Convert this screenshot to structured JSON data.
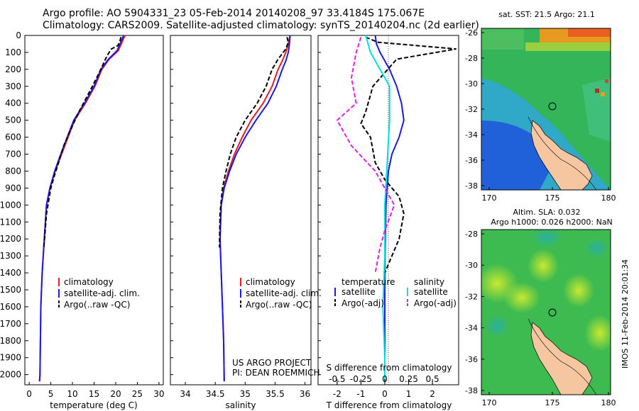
{
  "header": {
    "line1": "Argo profile: AO 5904331_23 05-Feb-2014 20140208_97 33.4184S 175.067E",
    "line2": "Climatology: CARS2009. Satellite-adjusted climatology: synTS_20140204.nc (2d earlier)"
  },
  "chart_data": [
    {
      "type": "line",
      "name": "temperature-profile",
      "xlabel": "temperature (deg C)",
      "ylabel": "",
      "xlim": [
        -1,
        31
      ],
      "ylim": [
        2060,
        0
      ],
      "xticks": [
        0,
        5,
        10,
        15,
        20,
        25,
        30
      ],
      "yticks": [
        0,
        100,
        200,
        300,
        400,
        500,
        600,
        700,
        800,
        900,
        1000,
        1100,
        1200,
        1300,
        1400,
        1500,
        1600,
        1700,
        1800,
        1900,
        2000
      ],
      "legend": [
        "climatology",
        "satellite-adj. clim.",
        "Argo(..raw -QC)"
      ],
      "series": [
        {
          "name": "climatology",
          "color": "#e02020",
          "style": "solid",
          "x": [
            22.2,
            21.8,
            21.3,
            20.6,
            18.5,
            16.8,
            15.2,
            13.0,
            10.5,
            9.0,
            7.5,
            6.0,
            4.8,
            4.0,
            3.5,
            3.0,
            2.7,
            2.6,
            2.5,
            2.4
          ],
          "y": [
            0,
            20,
            50,
            90,
            140,
            200,
            300,
            400,
            500,
            600,
            700,
            800,
            900,
            1000,
            1200,
            1400,
            1600,
            1800,
            2000,
            2040
          ]
        },
        {
          "name": "satellite-adj. clim.",
          "color": "#1a1ae0",
          "style": "solid",
          "x": [
            21.8,
            21.5,
            21.0,
            20.3,
            18.3,
            16.6,
            15.0,
            12.8,
            10.3,
            8.8,
            7.3,
            5.9,
            4.8,
            4.0,
            3.5,
            3.0,
            2.7,
            2.6,
            2.5,
            2.4
          ],
          "y": [
            0,
            20,
            50,
            90,
            140,
            200,
            300,
            400,
            500,
            600,
            700,
            800,
            900,
            1000,
            1200,
            1400,
            1600,
            1800,
            2000,
            2040
          ]
        },
        {
          "name": "Argo(..raw -QC)",
          "color": "#000000",
          "style": "dashed",
          "x": [
            21.2,
            21.0,
            20.5,
            19.0,
            18.0,
            16.0,
            14.0,
            11.5,
            9.5,
            8.0,
            6.8,
            5.8,
            5.0,
            4.0,
            3.4
          ],
          "y": [
            10,
            30,
            60,
            80,
            120,
            230,
            330,
            450,
            560,
            650,
            750,
            830,
            900,
            1050,
            1250
          ]
        }
      ]
    },
    {
      "type": "line",
      "name": "salinity-profile",
      "xlabel": "salinity",
      "xlim": [
        33.75,
        36.1
      ],
      "ylim": [
        2060,
        0
      ],
      "xticks": [
        34,
        34.5,
        35,
        35.5,
        36
      ],
      "legend": [
        "climatology",
        "satellite-adj. clim.",
        "Argo(..raw -QC)"
      ],
      "series": [
        {
          "name": "climatology",
          "color": "#e02020",
          "style": "solid",
          "x": [
            35.75,
            35.72,
            35.68,
            35.62,
            35.55,
            35.45,
            35.3,
            35.1,
            34.95,
            34.82,
            34.72,
            34.64,
            34.6,
            34.58,
            34.6,
            34.62,
            34.64,
            34.65
          ],
          "y": [
            0,
            50,
            100,
            150,
            200,
            300,
            400,
            500,
            600,
            700,
            800,
            900,
            1000,
            1200,
            1400,
            1600,
            1800,
            2040
          ]
        },
        {
          "name": "satellite-adj. clim.",
          "color": "#1a1ae0",
          "style": "solid",
          "x": [
            35.75,
            35.74,
            35.72,
            35.68,
            35.62,
            35.52,
            35.38,
            35.18,
            35.0,
            34.85,
            34.74,
            34.65,
            34.6,
            34.58,
            34.6,
            34.62,
            34.64,
            34.65
          ],
          "y": [
            0,
            50,
            100,
            150,
            200,
            300,
            400,
            500,
            600,
            700,
            800,
            900,
            1000,
            1200,
            1400,
            1600,
            1800,
            2040
          ]
        },
        {
          "name": "Argo(..raw -QC)",
          "color": "#000000",
          "style": "dashed",
          "x": [
            35.7,
            35.72,
            35.68,
            35.55,
            35.45,
            35.35,
            35.2,
            35.0,
            34.85,
            34.75,
            34.68,
            34.62,
            34.58,
            34.57
          ],
          "y": [
            10,
            40,
            80,
            140,
            200,
            300,
            400,
            500,
            600,
            700,
            800,
            900,
            1050,
            1250
          ]
        }
      ]
    },
    {
      "type": "line",
      "name": "difference-profile",
      "xlabel": "T difference from climatology",
      "xlabel_top": "S difference from climatology",
      "xlim": [
        -2.8,
        3.1
      ],
      "ylim": [
        2060,
        0
      ],
      "xticks": [
        -2,
        -1,
        0,
        1,
        2
      ],
      "xticks_top": [
        -0.5,
        -0.25,
        0,
        0.25,
        0.5
      ],
      "legend_temperature_title": "temperature",
      "legend_salinity_title": "salinity",
      "legend_t": [
        "satellite",
        "Argo(-adj)"
      ],
      "legend_s": [
        "satellite",
        "Argo(-adj)"
      ],
      "series": [
        {
          "name": "T satellite",
          "color": "#1a1ae0",
          "style": "solid",
          "x": [
            -0.4,
            -0.35,
            -0.2,
            0.2,
            0.5,
            0.7,
            0.8,
            0.6,
            0.3,
            0.15,
            0.05,
            0.0,
            0.0,
            0.0
          ],
          "y": [
            0,
            50,
            100,
            200,
            300,
            400,
            500,
            600,
            700,
            800,
            1000,
            1400,
            1800,
            2040
          ]
        },
        {
          "name": "T Argo(-adj)",
          "color": "#000000",
          "style": "dashed",
          "x": [
            -0.8,
            -0.3,
            3.0,
            0.5,
            -0.5,
            -0.8,
            -1.0,
            -0.6,
            -0.4,
            0.0,
            0.6,
            0.8,
            0.6,
            0.3,
            0.0
          ],
          "y": [
            10,
            40,
            80,
            140,
            300,
            450,
            520,
            600,
            750,
            850,
            950,
            1050,
            1200,
            1300,
            1400
          ]
        },
        {
          "name": "S satellite",
          "color": "#00dddd",
          "style": "solid",
          "x": [
            -0.2,
            -0.15,
            0.05,
            0.05,
            0.02,
            0.0,
            0.0,
            -0.02,
            0.0,
            0.0
          ],
          "y": [
            0,
            100,
            300,
            500,
            800,
            1000,
            1300,
            1600,
            1900,
            2040
          ]
        },
        {
          "name": "S Argo(-adj)",
          "color": "#e020e0",
          "style": "dashed",
          "x": [
            -0.25,
            -0.3,
            -0.35,
            -0.3,
            -0.5,
            -0.35,
            -0.1,
            0.1,
            0.0,
            -0.05,
            -0.1
          ],
          "y": [
            10,
            100,
            250,
            400,
            500,
            650,
            800,
            1000,
            1150,
            1250,
            1400
          ]
        }
      ]
    }
  ],
  "texts": {
    "us_argo": "US ARGO PROJECT",
    "pi": "PI: DEAN ROEMMICH"
  },
  "maps": [
    {
      "name": "sst-map",
      "title": "sat. SST: 21.5 Argo: 21.1",
      "title2": "",
      "xticks": [
        "170",
        "175",
        "180"
      ],
      "yticks": [
        "-26",
        "-28",
        "-30",
        "-32",
        "-34",
        "-36",
        "-38"
      ]
    },
    {
      "name": "sla-map",
      "title": "Altim. SLA: 0.032",
      "title2": "Argo h1000: 0.026 h2000: NaN",
      "xticks": [
        "170",
        "175",
        "180"
      ],
      "yticks": [
        "-28",
        "-30",
        "-32",
        "-34",
        "-36",
        "-38"
      ]
    }
  ],
  "side_label": "IMOS 11-Feb-2014 20:01:34",
  "colors": {
    "red": "#e02020",
    "blue": "#1a1ae0",
    "cyan": "#00dddd",
    "magenta": "#e020e0",
    "land": "#f5c6a0"
  }
}
